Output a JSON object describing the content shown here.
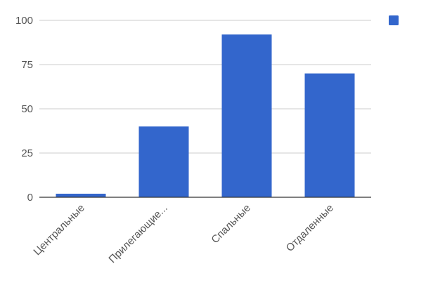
{
  "chart_data": {
    "type": "bar",
    "categories": [
      "Центральные",
      "Прилегающие...",
      "Спальные",
      "Отдаленные"
    ],
    "series": [
      {
        "values": [
          2,
          40,
          92,
          70
        ],
        "color": "#3366cc"
      }
    ],
    "ylim": [
      0,
      100
    ],
    "yticks": [
      0,
      25,
      50,
      75,
      100
    ],
    "grid": true,
    "legend": "top-right",
    "colors": {
      "bar": "#3366cc",
      "grid": "#cccccc",
      "axis": "#333333",
      "text": "#555555"
    }
  }
}
